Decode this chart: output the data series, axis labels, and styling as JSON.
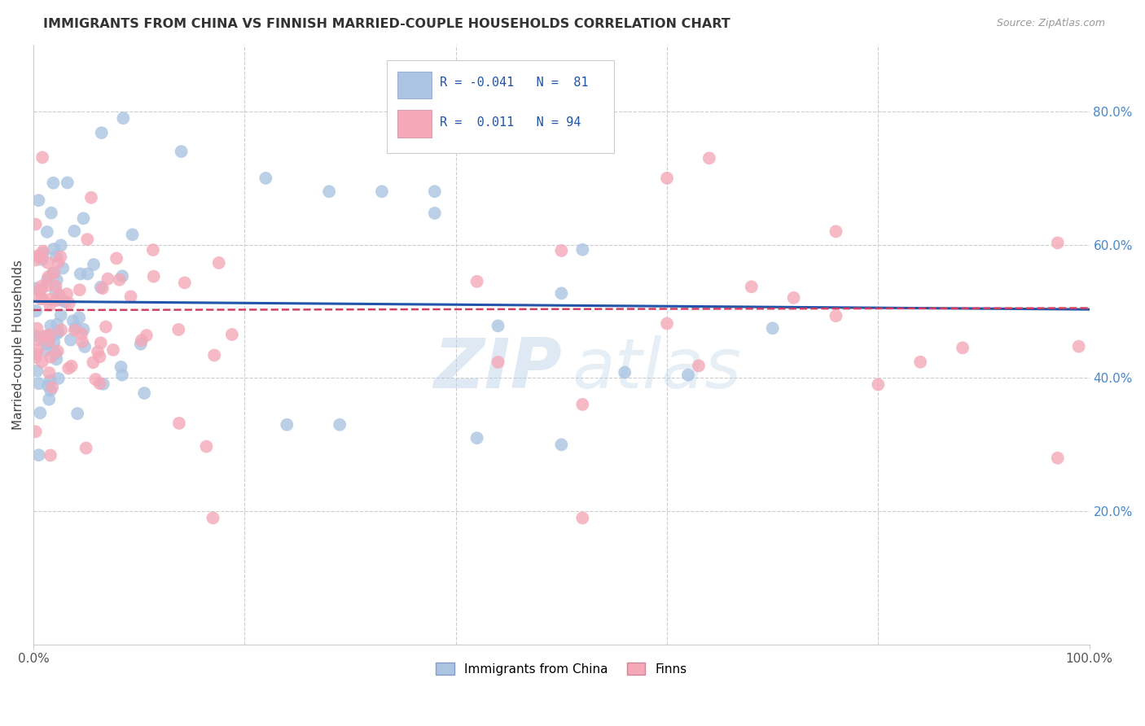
{
  "title": "IMMIGRANTS FROM CHINA VS FINNISH MARRIED-COUPLE HOUSEHOLDS CORRELATION CHART",
  "source": "Source: ZipAtlas.com",
  "ylabel": "Married-couple Households",
  "watermark": "ZIPatlas",
  "legend_blue_label": "Immigrants from China",
  "legend_pink_label": "Finns",
  "blue_color": "#aac4e2",
  "pink_color": "#f4a8b8",
  "blue_line_color": "#2255aa",
  "pink_line_color": "#d04060",
  "xlim": [
    0.0,
    1.0
  ],
  "ylim": [
    0.0,
    0.9
  ],
  "ytick_vals": [
    0.2,
    0.4,
    0.6,
    0.8
  ],
  "ytick_labels": [
    "20.0%",
    "40.0%",
    "60.0%",
    "80.0%"
  ],
  "background_color": "#ffffff",
  "grid_color": "#cccccc",
  "blue_trend_y0": 0.515,
  "blue_trend_y1": 0.503,
  "pink_trend_y0": 0.502,
  "pink_trend_y1": 0.505
}
